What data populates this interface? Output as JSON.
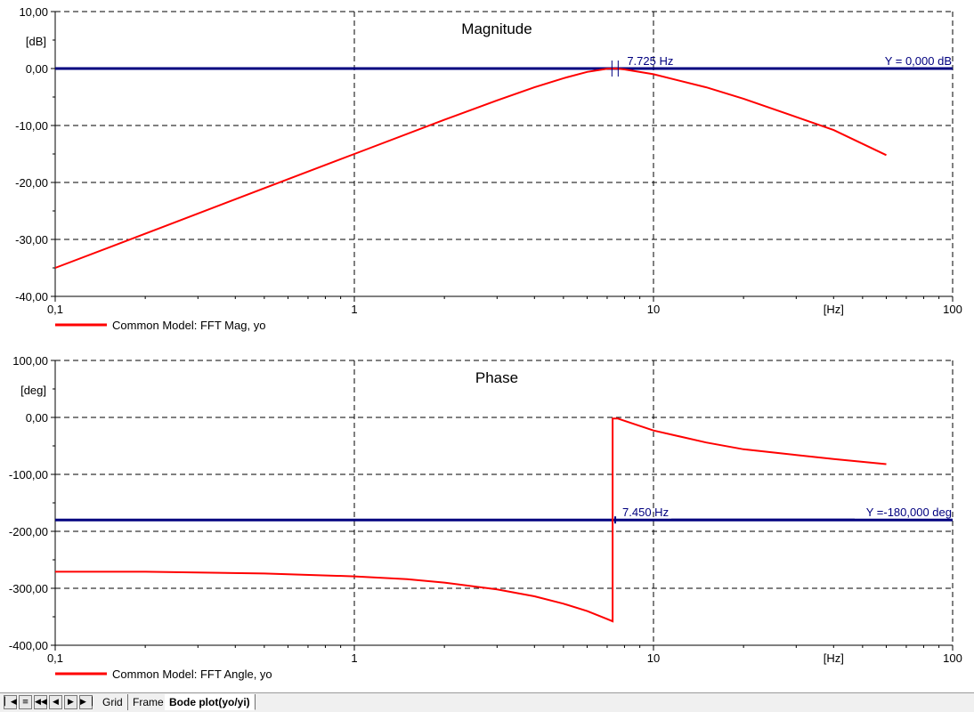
{
  "chart_data": [
    {
      "type": "line",
      "title": "Magnitude",
      "unit_label": "[dB]",
      "xscale": "log",
      "xlim": [
        0.1,
        100
      ],
      "ylim": [
        -40,
        10
      ],
      "yticks": [
        10,
        0,
        -10,
        -20,
        -30,
        -40
      ],
      "ytick_labels": [
        "10,00",
        "0,00",
        "-10,00",
        "-20,00",
        "-30,00",
        "-40,00"
      ],
      "xtick_labels": [
        {
          "value": 0.1,
          "label": "0,1"
        },
        {
          "value": 1,
          "label": "1"
        },
        {
          "value": 10,
          "label": "10"
        },
        {
          "value": 100,
          "label": "100"
        }
      ],
      "xunit_label": "[Hz]",
      "grid": true,
      "series": [
        {
          "name": "Common Model: FFT Mag, yo",
          "color": "#ff0000",
          "x": [
            0.1,
            0.2,
            0.5,
            1,
            2,
            3,
            4,
            5,
            6,
            7,
            7.5,
            8,
            10,
            15,
            20,
            30,
            40,
            60
          ],
          "y": [
            -35,
            -29,
            -21,
            -15,
            -9,
            -5.6,
            -3.3,
            -1.7,
            -0.6,
            -0.05,
            0,
            -0.15,
            -1,
            -3.3,
            -5.3,
            -8.5,
            -10.8,
            -15.2
          ]
        }
      ],
      "cursor_x": {
        "value": 7.725,
        "label": "7.725 Hz"
      },
      "cursor_y": {
        "value": 0,
        "label": "Y =  0,000 dB",
        "color": "#00007f"
      },
      "legend_position": "bottom-left"
    },
    {
      "type": "line",
      "title": "Phase",
      "unit_label": "[deg]",
      "xscale": "log",
      "xlim": [
        0.1,
        100
      ],
      "ylim": [
        -400,
        100
      ],
      "yticks": [
        100,
        0,
        -100,
        -200,
        -300,
        -400
      ],
      "ytick_labels": [
        "100,00",
        "0,00",
        "-100,00",
        "-200,00",
        "-300,00",
        "-400,00"
      ],
      "xtick_labels": [
        {
          "value": 0.1,
          "label": "0,1"
        },
        {
          "value": 1,
          "label": "1"
        },
        {
          "value": 10,
          "label": "10"
        },
        {
          "value": 100,
          "label": "100"
        }
      ],
      "xunit_label": "[Hz]",
      "grid": true,
      "series": [
        {
          "name": "Common Model: FFT Angle, yo",
          "color": "#ff0000",
          "x": [
            0.1,
            0.2,
            0.5,
            1,
            1.5,
            2,
            3,
            4,
            5,
            6,
            7,
            7.3,
            7.3,
            7.6,
            8,
            10,
            15,
            20,
            30,
            40,
            60
          ],
          "y": [
            -271,
            -271,
            -274,
            -279,
            -284,
            -290,
            -302,
            -314,
            -327,
            -340,
            -354,
            -358,
            -2,
            -2,
            -6,
            -23,
            -44,
            -56,
            -66,
            -73,
            -82
          ]
        }
      ],
      "cursor_x": {
        "value": 7.45,
        "label": "7.450 Hz"
      },
      "cursor_y": {
        "value": -180,
        "label": "Y =-180,000 deg",
        "color": "#00007f"
      },
      "legend_position": "bottom-left"
    }
  ],
  "tabs": {
    "nav_icons": [
      "first-page-icon",
      "menu-icon",
      "rewind-icon",
      "prev-icon",
      "next-icon",
      "last-page-icon"
    ],
    "items": [
      {
        "label": "Grid",
        "active": false
      },
      {
        "label": "Frame",
        "active": false
      },
      {
        "label": "Bode plot(yo/yi)",
        "active": true
      }
    ]
  }
}
